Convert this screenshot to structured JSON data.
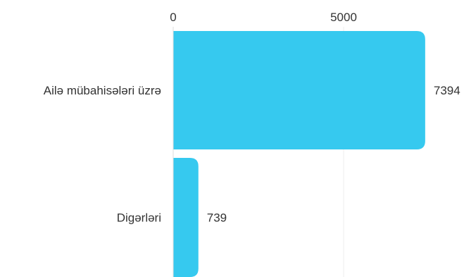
{
  "colors": {
    "bar": "#36c9ef",
    "grid": "#eeeeee",
    "text": "#333333"
  },
  "chart_data": {
    "type": "bar",
    "orientation": "horizontal",
    "categories": [
      "Ailə mübahisələri üzrə",
      "Digərləri"
    ],
    "values": [
      7394,
      739
    ],
    "data_labels": [
      "7394",
      "739"
    ],
    "xlim": [
      0,
      10000
    ],
    "xticks": [
      0,
      5000
    ],
    "x_tick_labels": [
      "0",
      "5000"
    ],
    "x_axis_position": "top",
    "grid": true,
    "legend": "none"
  }
}
